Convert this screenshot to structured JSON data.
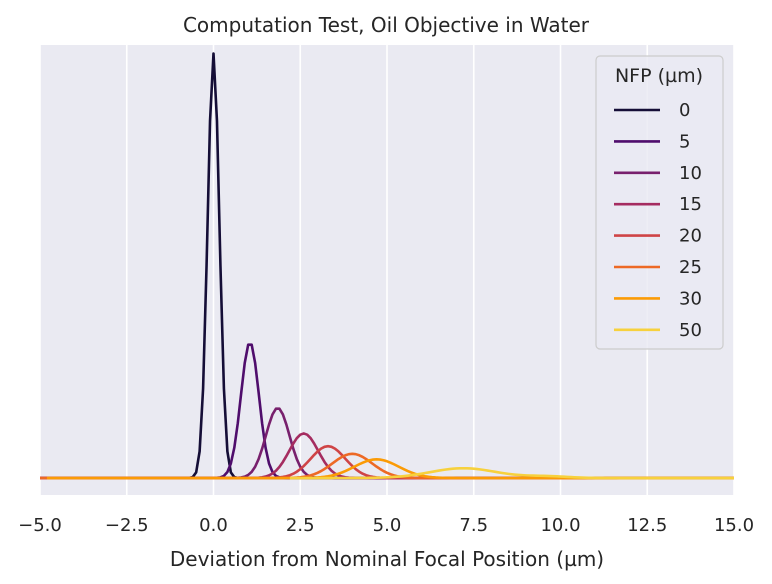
{
  "chart_data": {
    "type": "line",
    "title": "Computation Test, Oil Objective in Water",
    "xlabel": "Deviation from Nominal Focal Position (µm)",
    "ylabel": "",
    "xlim": [
      -5.0,
      15.0
    ],
    "ylim": [
      -0.04,
      1.02
    ],
    "x_ticks": [
      "−5.0",
      "−2.5",
      "0.0",
      "2.5",
      "5.0",
      "7.5",
      "10.0",
      "12.5",
      "15.0"
    ],
    "y_ticks_visible": false,
    "grid": "vertical",
    "legend": {
      "title": "NFP (µm)",
      "position": "top-right"
    },
    "series": [
      {
        "name": "0",
        "color": "#150e37",
        "peak_x": 0.0,
        "peak_y": 1.0,
        "width": 0.17,
        "x_start": -5.0
      },
      {
        "name": "5",
        "color": "#4f0d6c",
        "peak_x": 1.05,
        "peak_y": 0.32,
        "width": 0.26,
        "x_start": -5.0
      },
      {
        "name": "10",
        "color": "#78206d",
        "peak_x": 1.85,
        "peak_y": 0.165,
        "width": 0.34,
        "x_start": -5.0
      },
      {
        "name": "15",
        "color": "#a52c60",
        "peak_x": 2.6,
        "peak_y": 0.105,
        "width": 0.42,
        "x_start": -5.0
      },
      {
        "name": "20",
        "color": "#cf4446",
        "peak_x": 3.3,
        "peak_y": 0.075,
        "width": 0.5,
        "x_start": -5.0
      },
      {
        "name": "25",
        "color": "#ed6925",
        "peak_x": 4.0,
        "peak_y": 0.057,
        "width": 0.57,
        "x_start": -5.0
      },
      {
        "name": "30",
        "color": "#fb9b06",
        "peak_x": 4.7,
        "peak_y": 0.044,
        "width": 0.64,
        "x_start": -4.8
      },
      {
        "name": "50",
        "color": "#f7d13d",
        "peak_x": 7.2,
        "peak_y": 0.023,
        "width": 0.95,
        "x_start": 2.2,
        "secondary_peak": {
          "x": 9.6,
          "y": 0.004,
          "width": 0.6
        }
      }
    ]
  }
}
